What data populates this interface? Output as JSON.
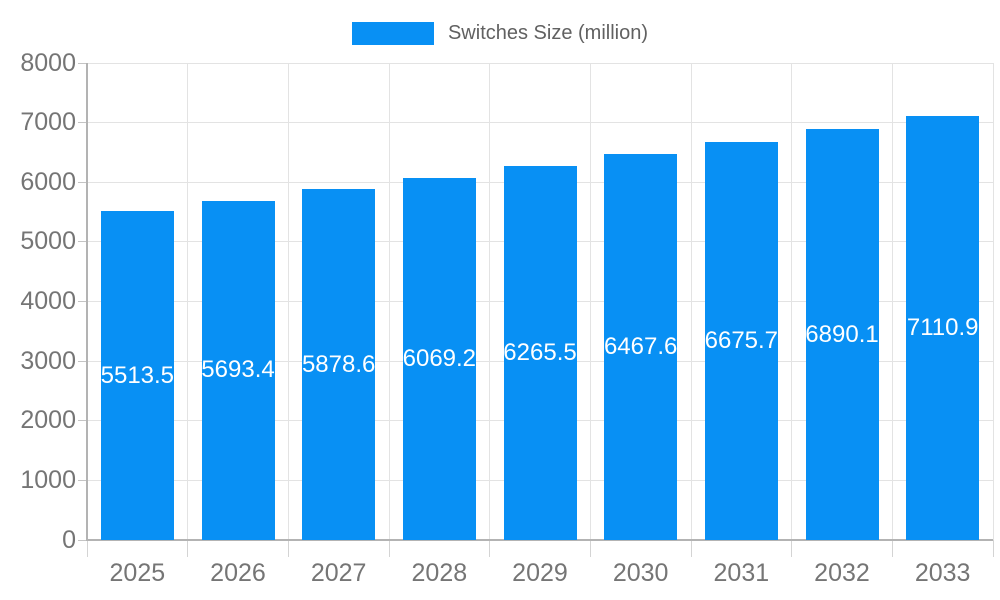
{
  "legend": {
    "label": "Switches Size (million)"
  },
  "colors": {
    "bar": "#0890f4",
    "grid": "#e3e3e3",
    "axis": "#b3b3b3",
    "tick_label": "#757575",
    "legend_text": "#616161",
    "value_label": "#ffffff",
    "background": "#ffffff"
  },
  "chart_data": {
    "type": "bar",
    "title": "Switches Size (million)",
    "categories": [
      "2025",
      "2026",
      "2027",
      "2028",
      "2029",
      "2030",
      "2031",
      "2032",
      "2033"
    ],
    "series": [
      {
        "name": "Switches Size (million)",
        "values": [
          5513.5,
          5693.4,
          5878.6,
          6069.2,
          6265.5,
          6467.6,
          6675.7,
          6890.1,
          7110.9
        ],
        "labels": [
          "5513.5",
          "5693.4",
          "5878.6",
          "6069.2",
          "6265.5",
          "6467.6",
          "6675.7",
          "6890.1",
          "7110.9"
        ]
      }
    ],
    "xlabel": "",
    "ylabel": "",
    "ylim": [
      0,
      8000
    ],
    "ytick_step": 1000,
    "ytick_labels": [
      "0",
      "1000",
      "2000",
      "3000",
      "4000",
      "5000",
      "6000",
      "7000",
      "8000"
    ],
    "grid": true,
    "legend_position": "top",
    "value_labels_position": "center-inside"
  }
}
